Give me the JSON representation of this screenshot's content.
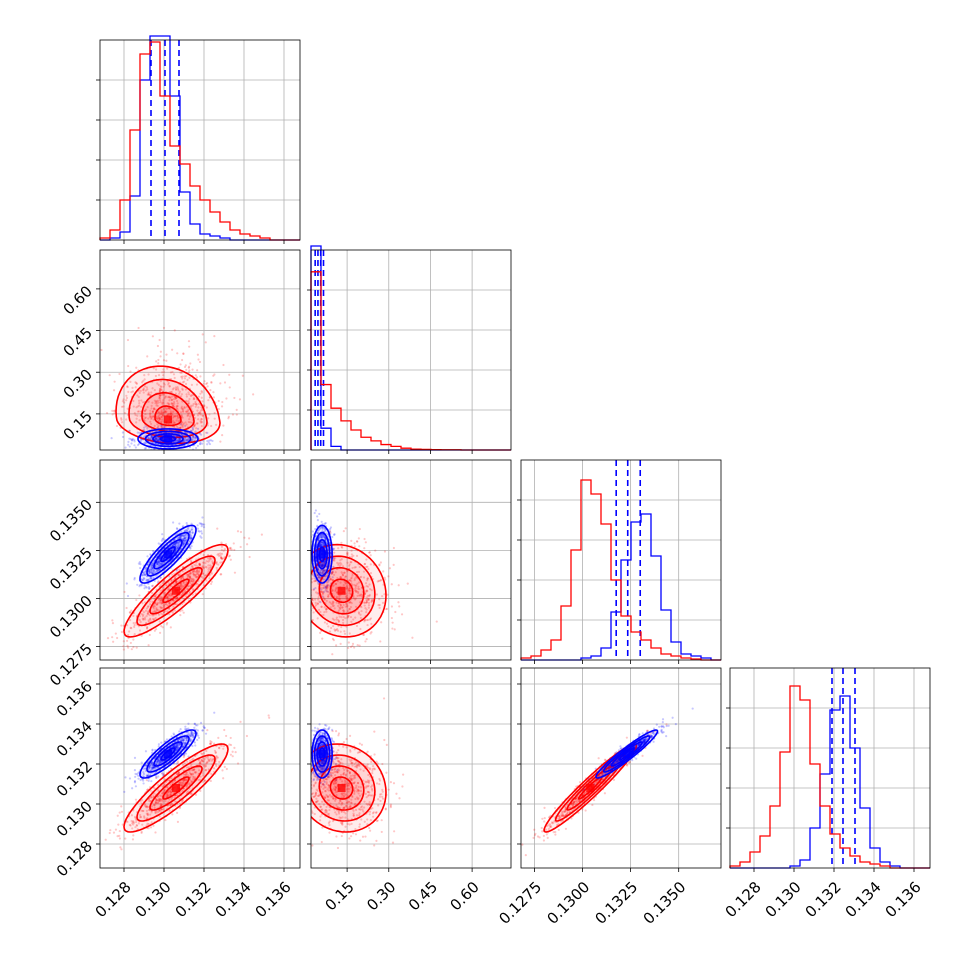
{
  "colors": {
    "posterior_a": "#0000ff",
    "posterior_b": "#ff0000",
    "grid": "#b0b0b0",
    "frame": "#000000"
  },
  "chart_data": {
    "type": "corner",
    "grid": true,
    "parameters": [
      {
        "range": [
          0.1268,
          0.1368
        ],
        "ticks": [
          "0.128",
          "0.130",
          "0.132",
          "0.134",
          "0.136"
        ],
        "tick_values": [
          0.128,
          0.13,
          0.132,
          0.134,
          0.136
        ]
      },
      {
        "range": [
          0.02,
          0.74
        ],
        "ticks": [
          "0.15",
          "0.30",
          "0.45",
          "0.60"
        ],
        "tick_values": [
          0.15,
          0.3,
          0.45,
          0.6
        ]
      },
      {
        "range": [
          0.1268,
          0.1372
        ],
        "ticks": [
          "0.1275",
          "0.1300",
          "0.1325",
          "0.1350"
        ],
        "tick_values": [
          0.1275,
          0.13,
          0.1325,
          0.135
        ]
      },
      {
        "range": [
          0.1268,
          0.1368
        ],
        "ticks": [
          "0.128",
          "0.130",
          "0.132",
          "0.134",
          "0.136"
        ],
        "tick_values": [
          0.128,
          0.13,
          0.132,
          0.134,
          0.136
        ]
      }
    ],
    "histograms": [
      {
        "param": 0,
        "bins": [
          0.1268,
          0.1273,
          0.1278,
          0.1283,
          0.1288,
          0.1293,
          0.1298,
          0.1303,
          0.1308,
          0.1313,
          0.1318,
          0.1323,
          0.1328,
          0.1333,
          0.1338,
          0.1343,
          0.1348,
          0.1353,
          0.1358,
          0.1363,
          0.1368
        ],
        "ymax": 1.0,
        "series": [
          {
            "name": "",
            "color": "#0000ff",
            "counts": [
              0,
              0.01,
              0.04,
              0.22,
              0.8,
              1.05,
              1.02,
              0.72,
              0.24,
              0.08,
              0.03,
              0.02,
              0.01,
              0,
              0,
              0,
              0,
              0,
              0,
              0
            ],
            "quantiles": [
              0.12935,
              0.13005,
              0.13075
            ]
          },
          {
            "name": "",
            "color": "#ff0000",
            "counts": [
              0.01,
              0.05,
              0.2,
              0.55,
              0.93,
              0.99,
              0.72,
              0.47,
              0.38,
              0.27,
              0.2,
              0.14,
              0.09,
              0.05,
              0.03,
              0.02,
              0.01,
              0,
              0,
              0
            ],
            "quantiles": []
          }
        ]
      },
      {
        "param": 1,
        "bins": [
          0.02,
          0.056,
          0.092,
          0.128,
          0.164,
          0.2,
          0.236,
          0.272,
          0.308,
          0.344,
          0.38,
          0.416,
          0.452,
          0.488,
          0.524,
          0.56,
          0.596,
          0.632,
          0.668,
          0.704,
          0.74
        ],
        "ymax": 1.1,
        "series": [
          {
            "name": "",
            "color": "#0000ff",
            "counts": [
              1.3,
              0.12,
              0.02,
              0,
              0,
              0,
              0,
              0,
              0,
              0,
              0,
              0,
              0,
              0,
              0,
              0,
              0,
              0,
              0,
              0
            ],
            "quantiles": [
              0.035,
              0.045,
              0.055,
              0.065
            ]
          },
          {
            "name": "",
            "color": "#ff0000",
            "counts": [
              0.98,
              0.36,
              0.23,
              0.16,
              0.11,
              0.07,
              0.05,
              0.03,
              0.02,
              0.01,
              0.005,
              0.003,
              0.002,
              0.001,
              0.001,
              0,
              0,
              0,
              0,
              0
            ],
            "quantiles": []
          }
        ]
      },
      {
        "param": 2,
        "bins": [
          0.1268,
          0.12732,
          0.12784,
          0.12836,
          0.12888,
          0.1294,
          0.12992,
          0.13044,
          0.13096,
          0.13148,
          0.132,
          0.13252,
          0.13304,
          0.13356,
          0.13408,
          0.1346,
          0.13512,
          0.13564,
          0.13616,
          0.13668,
          0.1372
        ],
        "ymax": 1.0,
        "series": [
          {
            "name": "",
            "color": "#0000ff",
            "counts": [
              0,
              0,
              0,
              0,
              0,
              0,
              0.01,
              0.02,
              0.06,
              0.24,
              0.5,
              0.69,
              0.73,
              0.52,
              0.25,
              0.09,
              0.03,
              0.02,
              0.01,
              0
            ],
            "quantiles": [
              0.13175,
              0.13235,
              0.133
            ]
          },
          {
            "name": "",
            "color": "#ff0000",
            "counts": [
              0.01,
              0.02,
              0.05,
              0.1,
              0.27,
              0.55,
              0.9,
              0.83,
              0.68,
              0.4,
              0.22,
              0.14,
              0.1,
              0.06,
              0.03,
              0.02,
              0.01,
              0.005,
              0,
              0
            ],
            "quantiles": []
          }
        ]
      },
      {
        "param": 3,
        "bins": [
          0.1268,
          0.1273,
          0.1278,
          0.1283,
          0.1288,
          0.1293,
          0.1298,
          0.1303,
          0.1308,
          0.1313,
          0.1318,
          0.1323,
          0.1328,
          0.1333,
          0.1338,
          0.1343,
          0.1348,
          0.1353,
          0.1358,
          0.1363,
          0.1368
        ],
        "ymax": 1.0,
        "series": [
          {
            "name": "",
            "color": "#0000ff",
            "counts": [
              0,
              0,
              0,
              0,
              0,
              0,
              0.01,
              0.04,
              0.2,
              0.47,
              0.79,
              0.86,
              0.6,
              0.3,
              0.1,
              0.03,
              0.01,
              0,
              0,
              0
            ],
            "quantiles": [
              0.1319,
              0.13245,
              0.13305
            ]
          },
          {
            "name": "",
            "color": "#ff0000",
            "counts": [
              0.01,
              0.03,
              0.08,
              0.16,
              0.31,
              0.58,
              0.91,
              0.84,
              0.52,
              0.31,
              0.17,
              0.1,
              0.06,
              0.03,
              0.02,
              0.01,
              0,
              0,
              0,
              0
            ],
            "quantiles": []
          }
        ]
      }
    ],
    "pairs": [
      {
        "x": 0,
        "y": 1,
        "series": [
          {
            "name": "",
            "color": "#0000ff",
            "center": [
              0.1302,
              0.06
            ],
            "sd": [
              0.00075,
              0.018
            ],
            "corr": 0.0,
            "skew_y": false
          },
          {
            "name": "",
            "color": "#ff0000",
            "center": [
              0.1302,
              0.13
            ],
            "sd": [
              0.0013,
              0.08
            ],
            "corr": -0.15,
            "skew_y": true
          }
        ]
      },
      {
        "x": 0,
        "y": 2,
        "series": [
          {
            "name": "",
            "color": "#0000ff",
            "center": [
              0.1302,
              0.1323
            ],
            "sd": [
              0.0007,
              0.00075
            ],
            "corr": 0.85,
            "skew_y": false
          },
          {
            "name": "",
            "color": "#ff0000",
            "center": [
              0.1306,
              0.1304
            ],
            "sd": [
              0.0013,
              0.0012
            ],
            "corr": 0.88,
            "skew_y": false
          }
        ]
      },
      {
        "x": 1,
        "y": 2,
        "series": [
          {
            "name": "",
            "color": "#0000ff",
            "center": [
              0.06,
              0.1323
            ],
            "sd": [
              0.018,
              0.00075
            ],
            "corr": 0.0,
            "skew_y": false
          },
          {
            "name": "",
            "color": "#ff0000",
            "center": [
              0.13,
              0.1304
            ],
            "sd": [
              0.08,
              0.0012
            ],
            "corr": -0.1,
            "skew_y": false
          }
        ]
      },
      {
        "x": 0,
        "y": 3,
        "series": [
          {
            "name": "",
            "color": "#0000ff",
            "center": [
              0.1302,
              0.1325
            ],
            "sd": [
              0.0007,
              0.0006
            ],
            "corr": 0.85,
            "skew_y": false
          },
          {
            "name": "",
            "color": "#ff0000",
            "center": [
              0.1306,
              0.1308
            ],
            "sd": [
              0.0013,
              0.0011
            ],
            "corr": 0.88,
            "skew_y": false
          }
        ]
      },
      {
        "x": 1,
        "y": 3,
        "series": [
          {
            "name": "",
            "color": "#0000ff",
            "center": [
              0.06,
              0.1325
            ],
            "sd": [
              0.018,
              0.0006
            ],
            "corr": 0.0,
            "skew_y": false
          },
          {
            "name": "",
            "color": "#ff0000",
            "center": [
              0.13,
              0.1308
            ],
            "sd": [
              0.08,
              0.0011
            ],
            "corr": -0.1,
            "skew_y": false
          }
        ]
      },
      {
        "x": 2,
        "y": 3,
        "series": [
          {
            "name": "",
            "color": "#0000ff",
            "center": [
              0.1323,
              0.1325
            ],
            "sd": [
              0.0008,
              0.0006
            ],
            "corr": 0.95,
            "skew_y": false
          },
          {
            "name": "",
            "color": "#ff0000",
            "center": [
              0.1304,
              0.1308
            ],
            "sd": [
              0.0012,
              0.0011
            ],
            "corr": 0.96,
            "skew_y": false
          }
        ]
      }
    ]
  }
}
